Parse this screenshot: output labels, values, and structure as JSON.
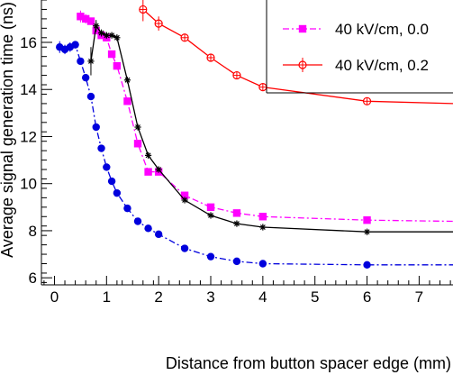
{
  "chart_data": {
    "type": "scatter",
    "xlabel": "Distance from button spacer edge (mm)",
    "ylabel": "Average signal generation time (ns)",
    "xlim": [
      -0.25,
      7.65
    ],
    "ylim": [
      5.7,
      17.8
    ],
    "xticks": [
      0,
      1,
      2,
      3,
      4,
      5,
      6,
      7
    ],
    "yticks": [
      6,
      8,
      10,
      12,
      14,
      16
    ],
    "grid": false,
    "legend_position": "top-right",
    "series": [
      {
        "name": "40 kV/cm, 0.2",
        "color": "#ff0000",
        "line_style": "solid",
        "marker": "open-circle-cross",
        "x": [
          1.7,
          2.0,
          2.5,
          3.0,
          3.5,
          4.0,
          6.0,
          7.65
        ],
        "y": [
          17.4,
          16.8,
          16.2,
          15.35,
          14.6,
          14.1,
          13.5,
          13.4
        ],
        "err": [
          0.5,
          0.3,
          0.12,
          0.12,
          0.12,
          0.12,
          0.12,
          0.0
        ]
      },
      {
        "name": "40 kV/cm, 0.0",
        "color": "#ff00ff",
        "line_style": "dash-dot",
        "marker": "filled-square",
        "x": [
          0.5,
          0.6,
          0.7,
          0.8,
          0.9,
          1.0,
          1.1,
          1.2,
          1.4,
          1.6,
          1.8,
          2.0,
          2.5,
          3.0,
          3.5,
          4.0,
          6.0,
          7.65
        ],
        "y": [
          17.1,
          17.0,
          16.9,
          16.5,
          16.3,
          16.2,
          15.5,
          15.0,
          13.5,
          11.7,
          10.5,
          10.5,
          9.5,
          9.0,
          8.75,
          8.6,
          8.45,
          8.4
        ],
        "err": [
          0.25,
          0.2,
          0.15,
          0.15,
          0.12,
          0.12,
          0.12,
          0.1,
          0.1,
          0.1,
          0.1,
          0.1,
          0.08,
          0.08,
          0.08,
          0.08,
          0.08,
          0.0
        ]
      },
      {
        "name": "",
        "color": "#000000",
        "line_style": "solid",
        "marker": "star",
        "x": [
          0.7,
          0.8,
          0.9,
          1.0,
          1.1,
          1.2,
          1.4,
          1.6,
          1.8,
          2.0,
          2.5,
          3.0,
          3.5,
          4.0,
          6.0,
          7.65
        ],
        "y": [
          15.2,
          16.7,
          16.4,
          16.3,
          16.3,
          16.2,
          14.4,
          12.4,
          11.2,
          10.6,
          9.3,
          8.65,
          8.3,
          8.15,
          7.95,
          7.95
        ],
        "err": [
          0.6,
          0.25,
          0.15,
          0.12,
          0.12,
          0.12,
          0.1,
          0.1,
          0.1,
          0.1,
          0.08,
          0.08,
          0.08,
          0.08,
          0.08,
          0.0
        ]
      },
      {
        "name": "",
        "color": "#0000dd",
        "line_style": "dash-dot",
        "marker": "filled-circle",
        "x": [
          0.1,
          0.2,
          0.3,
          0.4,
          0.5,
          0.6,
          0.7,
          0.8,
          0.9,
          1.0,
          1.1,
          1.2,
          1.4,
          1.6,
          1.8,
          2.0,
          2.5,
          3.0,
          3.5,
          4.0,
          6.0,
          7.65
        ],
        "y": [
          15.8,
          15.7,
          15.8,
          15.9,
          15.2,
          14.5,
          13.7,
          12.4,
          11.5,
          10.7,
          10.1,
          9.6,
          8.95,
          8.4,
          8.1,
          7.85,
          7.25,
          6.9,
          6.7,
          6.6,
          6.55,
          6.55
        ],
        "err": [
          0.25,
          0.2,
          0.2,
          0.15,
          0.12,
          0.1,
          0.1,
          0.1,
          0.1,
          0.08,
          0.08,
          0.08,
          0.08,
          0.08,
          0.08,
          0.08,
          0.06,
          0.06,
          0.06,
          0.06,
          0.06,
          0.0
        ]
      }
    ],
    "legend": [
      {
        "label": "40 kV/cm, 0.0",
        "series": 1
      },
      {
        "label": "40 kV/cm, 0.2",
        "series": 0
      }
    ]
  }
}
